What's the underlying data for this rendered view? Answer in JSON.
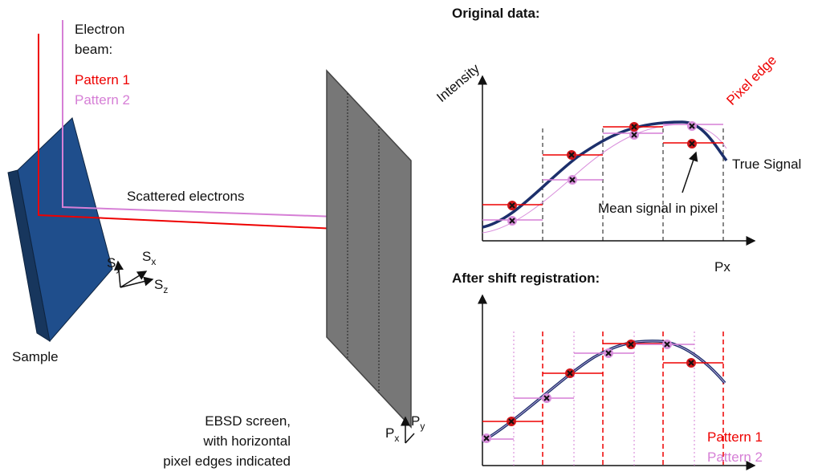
{
  "beam_label": [
    "Electron",
    "beam:"
  ],
  "left_legend": {
    "pattern1": "Pattern 1",
    "pattern2": "Pattern 2"
  },
  "scattered_label": "Scattered electrons",
  "sample_axes": [
    {
      "base": "S",
      "sub": "y"
    },
    {
      "base": "S",
      "sub": "x"
    },
    {
      "base": "S",
      "sub": "z"
    }
  ],
  "sample_label": "Sample",
  "screen_label": [
    "EBSD screen,",
    "with horizontal",
    "pixel edges indicated"
  ],
  "screen_axes": [
    {
      "base": "P",
      "sub": "y"
    },
    {
      "base": "P",
      "sub": "x"
    }
  ],
  "top_plot": {
    "title": "Original data:",
    "y_label": "Intensity",
    "pixel_edge": "Pixel edge",
    "true_signal": "True Signal",
    "mean_signal": "Mean signal in pixel",
    "x_label": "Px"
  },
  "bottom_plot": {
    "title": "After shift registration:",
    "legend": [
      "Pattern 1",
      "Pattern 2"
    ]
  }
}
